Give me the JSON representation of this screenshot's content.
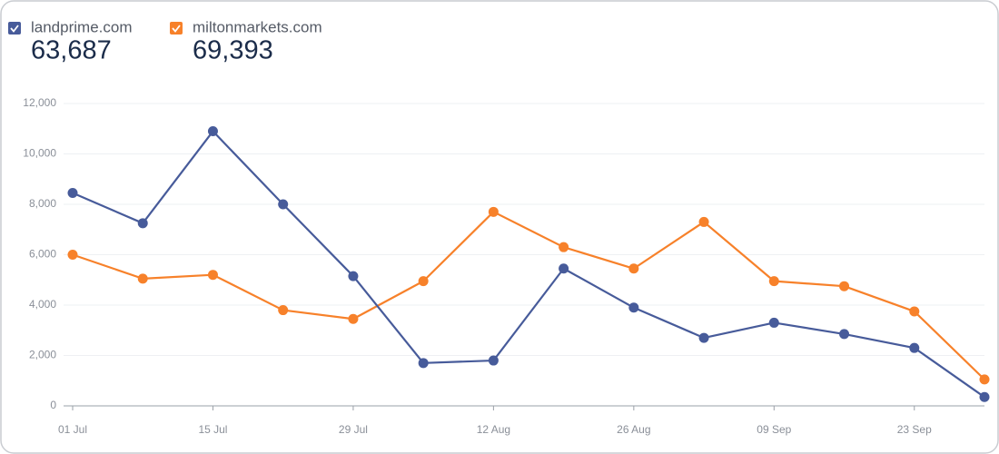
{
  "chart_data": {
    "type": "line",
    "categories": [
      "01 Jul",
      null,
      "15 Jul",
      null,
      "29 Jul",
      null,
      "12 Aug",
      null,
      "26 Aug",
      null,
      "09 Sep",
      null,
      "23 Sep",
      null
    ],
    "series": [
      {
        "name": "landprime.com",
        "total": "63,687",
        "color": "#475b9a",
        "values": [
          8450,
          7250,
          10900,
          8000,
          5150,
          1700,
          1800,
          5450,
          3900,
          2700,
          3300,
          2850,
          2300,
          350
        ]
      },
      {
        "name": "miltonmarkets.com",
        "total": "69,393",
        "color": "#f7812a",
        "values": [
          6000,
          5050,
          5200,
          3800,
          3450,
          4950,
          7700,
          6300,
          5450,
          7300,
          4950,
          4750,
          3750,
          1050
        ]
      }
    ],
    "ylim": [
      0,
      12000
    ],
    "yticks": [
      0,
      {
        "value": 2000,
        "label": "2,000"
      },
      {
        "value": 4000,
        "label": "4,000"
      },
      {
        "value": 6000,
        "label": "6,000"
      },
      {
        "value": 8000,
        "label": "8,000"
      },
      {
        "value": 10000,
        "label": "10,000"
      },
      {
        "value": 12000,
        "label": "12,000"
      }
    ],
    "grid": true
  }
}
